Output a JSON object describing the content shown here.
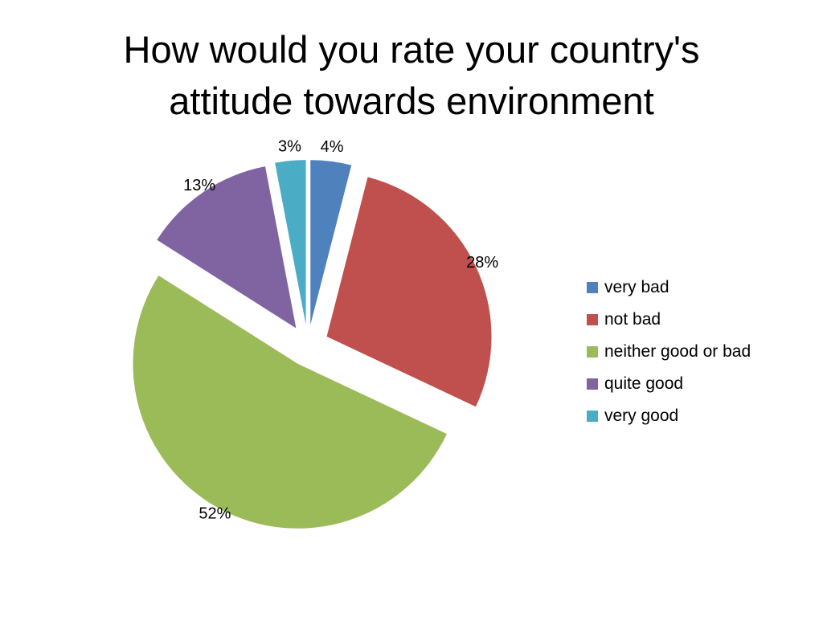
{
  "title_lines": [
    "How would you rate your country's",
    "attitude towards environment"
  ],
  "chart_data": {
    "type": "pie",
    "title": "How would you rate your country's attitude towards environment",
    "categories": [
      "very bad",
      "not bad",
      "neither good or bad",
      "quite good",
      "very good"
    ],
    "values": [
      4,
      28,
      52,
      13,
      3
    ],
    "data_labels": [
      "4%",
      "28%",
      "52%",
      "13%",
      "3%"
    ],
    "colors": [
      "#4F81BD",
      "#C0504D",
      "#9BBB59",
      "#8064A2",
      "#4BACC6"
    ],
    "exploded": true,
    "legend_position": "right"
  }
}
